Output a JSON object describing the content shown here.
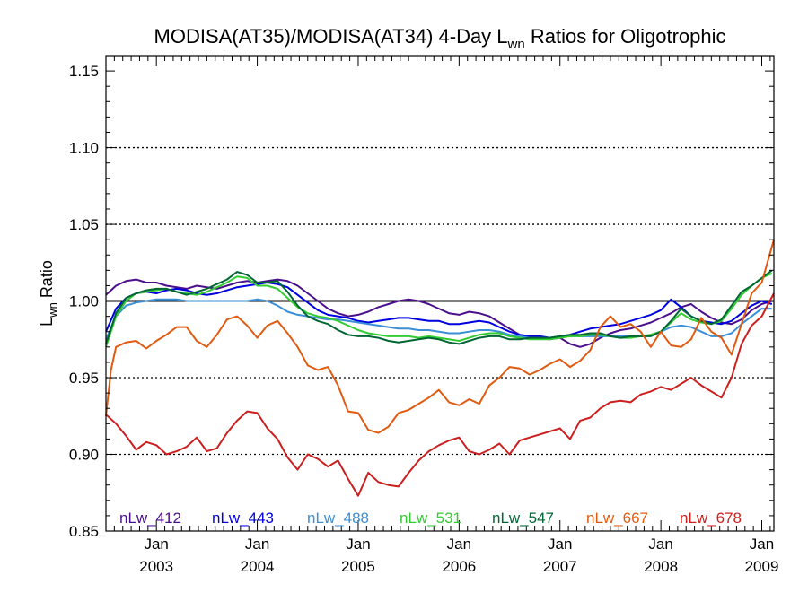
{
  "chart_data": {
    "type": "line",
    "title_main": "MODISA(AT35)/MODISA(AT34) 4-Day L",
    "title_sub": "wn",
    "title_rest": " Ratios for Oligotrophic",
    "ylabel_main": "L",
    "ylabel_sub": "wn",
    "ylabel_rest": " Ratio",
    "ylim": [
      0.85,
      1.16
    ],
    "xlim": [
      2002.5,
      2009.12
    ],
    "yticks": [
      {
        "value": 0.85,
        "label": "0.85"
      },
      {
        "value": 0.9,
        "label": "0.90"
      },
      {
        "value": 0.95,
        "label": "0.95"
      },
      {
        "value": 1.0,
        "label": "1.00"
      },
      {
        "value": 1.05,
        "label": "1.05"
      },
      {
        "value": 1.1,
        "label": "1.10"
      },
      {
        "value": 1.15,
        "label": "1.15"
      }
    ],
    "xticks": [
      {
        "value": 2003,
        "month": "Jan",
        "year": "2003"
      },
      {
        "value": 2004,
        "month": "Jan",
        "year": "2004"
      },
      {
        "value": 2005,
        "month": "Jan",
        "year": "2005"
      },
      {
        "value": 2006,
        "month": "Jan",
        "year": "2006"
      },
      {
        "value": 2007,
        "month": "Jan",
        "year": "2007"
      },
      {
        "value": 2008,
        "month": "Jan",
        "year": "2008"
      },
      {
        "value": 2009,
        "month": "Jan",
        "year": "2009"
      }
    ],
    "reference_line": 1.0,
    "dotted_gridlines": [
      0.9,
      0.95,
      1.05,
      1.1
    ],
    "series": [
      {
        "name": "nLw_412",
        "color": "#4b0f8c",
        "x": [
          2002.5,
          2002.6,
          2002.7,
          2002.8,
          2002.9,
          2003.0,
          2003.1,
          2003.2,
          2003.3,
          2003.4,
          2003.5,
          2003.6,
          2003.7,
          2003.8,
          2003.9,
          2004.0,
          2004.1,
          2004.2,
          2004.3,
          2004.4,
          2004.5,
          2004.6,
          2004.7,
          2004.8,
          2004.9,
          2005.0,
          2005.1,
          2005.2,
          2005.3,
          2005.4,
          2005.5,
          2005.6,
          2005.7,
          2005.8,
          2005.9,
          2006.0,
          2006.1,
          2006.2,
          2006.3,
          2006.4,
          2006.5,
          2006.6,
          2006.7,
          2006.8,
          2006.9,
          2007.0,
          2007.1,
          2007.2,
          2007.3,
          2007.4,
          2007.5,
          2007.6,
          2007.7,
          2007.8,
          2007.9,
          2008.0,
          2008.1,
          2008.2,
          2008.3,
          2008.4,
          2008.5,
          2008.6,
          2008.7,
          2008.8,
          2008.9,
          2009.0,
          2009.1
        ],
        "values": [
          1.004,
          1.01,
          1.013,
          1.014,
          1.012,
          1.012,
          1.01,
          1.009,
          1.008,
          1.01,
          1.009,
          1.008,
          1.01,
          1.012,
          1.013,
          1.012,
          1.013,
          1.014,
          1.013,
          1.01,
          1.005,
          1.0,
          0.995,
          0.992,
          0.99,
          0.991,
          0.993,
          0.996,
          0.998,
          1.0,
          1.001,
          1.0,
          0.998,
          0.995,
          0.992,
          0.991,
          0.993,
          0.992,
          0.99,
          0.986,
          0.982,
          0.978,
          0.977,
          0.976,
          0.975,
          0.976,
          0.972,
          0.97,
          0.972,
          0.976,
          0.979,
          0.981,
          0.982,
          0.984,
          0.986,
          0.989,
          0.992,
          0.996,
          0.998,
          0.993,
          0.989,
          0.986,
          0.985,
          0.988,
          0.994,
          0.998,
          1.0
        ]
      },
      {
        "name": "nLw_443",
        "color": "#0000e0",
        "x": [
          2002.5,
          2002.6,
          2002.7,
          2002.8,
          2002.9,
          2003.0,
          2003.1,
          2003.2,
          2003.3,
          2003.4,
          2003.5,
          2003.6,
          2003.7,
          2003.8,
          2003.9,
          2004.0,
          2004.1,
          2004.2,
          2004.3,
          2004.4,
          2004.5,
          2004.6,
          2004.7,
          2004.8,
          2004.9,
          2005.0,
          2005.1,
          2005.2,
          2005.3,
          2005.4,
          2005.5,
          2005.6,
          2005.7,
          2005.8,
          2005.9,
          2006.0,
          2006.1,
          2006.2,
          2006.3,
          2006.4,
          2006.5,
          2006.6,
          2006.7,
          2006.8,
          2006.9,
          2007.0,
          2007.1,
          2007.2,
          2007.3,
          2007.4,
          2007.5,
          2007.6,
          2007.7,
          2007.8,
          2007.9,
          2008.0,
          2008.1,
          2008.2,
          2008.3,
          2008.4,
          2008.5,
          2008.6,
          2008.7,
          2008.8,
          2008.9,
          2009.0,
          2009.1
        ],
        "values": [
          0.98,
          0.995,
          1.002,
          1.005,
          1.006,
          1.005,
          1.007,
          1.008,
          1.007,
          1.005,
          1.004,
          1.005,
          1.007,
          1.009,
          1.01,
          1.011,
          1.012,
          1.011,
          1.009,
          1.004,
          0.999,
          0.994,
          0.991,
          0.99,
          0.989,
          0.987,
          0.986,
          0.987,
          0.988,
          0.989,
          0.989,
          0.988,
          0.987,
          0.987,
          0.985,
          0.985,
          0.986,
          0.987,
          0.986,
          0.983,
          0.98,
          0.978,
          0.977,
          0.977,
          0.976,
          0.977,
          0.978,
          0.98,
          0.982,
          0.983,
          0.984,
          0.985,
          0.987,
          0.989,
          0.991,
          0.994,
          1.001,
          0.996,
          0.99,
          0.987,
          0.986,
          0.985,
          0.987,
          0.992,
          0.997,
          1.0,
          0.998
        ]
      },
      {
        "name": "nLw_488",
        "color": "#3a8fd6",
        "x": [
          2002.5,
          2002.6,
          2002.7,
          2002.8,
          2002.9,
          2003.0,
          2003.1,
          2003.2,
          2003.3,
          2003.4,
          2003.5,
          2003.6,
          2003.7,
          2003.8,
          2003.9,
          2004.0,
          2004.1,
          2004.2,
          2004.3,
          2004.4,
          2004.5,
          2004.6,
          2004.7,
          2004.8,
          2004.9,
          2005.0,
          2005.1,
          2005.2,
          2005.3,
          2005.4,
          2005.5,
          2005.6,
          2005.7,
          2005.8,
          2005.9,
          2006.0,
          2006.1,
          2006.2,
          2006.3,
          2006.4,
          2006.5,
          2006.6,
          2006.7,
          2006.8,
          2006.9,
          2007.0,
          2007.1,
          2007.2,
          2007.3,
          2007.4,
          2007.5,
          2007.6,
          2007.7,
          2007.8,
          2007.9,
          2008.0,
          2008.1,
          2008.2,
          2008.3,
          2008.4,
          2008.5,
          2008.6,
          2008.7,
          2008.8,
          2008.9,
          2009.0,
          2009.1
        ],
        "values": [
          0.975,
          0.99,
          0.997,
          0.999,
          1.0,
          1.001,
          1.001,
          1.001,
          1.0,
          1.0,
          1.0,
          1.0,
          1.0,
          1.0,
          1.0,
          1.001,
          1.0,
          0.997,
          0.993,
          0.991,
          0.99,
          0.989,
          0.988,
          0.988,
          0.987,
          0.986,
          0.985,
          0.984,
          0.983,
          0.982,
          0.982,
          0.981,
          0.981,
          0.98,
          0.979,
          0.979,
          0.98,
          0.981,
          0.981,
          0.98,
          0.978,
          0.977,
          0.976,
          0.976,
          0.976,
          0.977,
          0.977,
          0.977,
          0.977,
          0.977,
          0.977,
          0.977,
          0.977,
          0.977,
          0.978,
          0.98,
          0.983,
          0.984,
          0.983,
          0.98,
          0.977,
          0.977,
          0.979,
          0.985,
          0.99,
          0.995,
          0.995
        ]
      },
      {
        "name": "nLw_531",
        "color": "#33cc33",
        "x": [
          2002.5,
          2002.6,
          2002.7,
          2002.8,
          2002.9,
          2003.0,
          2003.1,
          2003.2,
          2003.3,
          2003.4,
          2003.5,
          2003.6,
          2003.7,
          2003.8,
          2003.9,
          2004.0,
          2004.1,
          2004.2,
          2004.3,
          2004.4,
          2004.5,
          2004.6,
          2004.7,
          2004.8,
          2004.9,
          2005.0,
          2005.1,
          2005.2,
          2005.3,
          2005.4,
          2005.5,
          2005.6,
          2005.7,
          2005.8,
          2005.9,
          2006.0,
          2006.1,
          2006.2,
          2006.3,
          2006.4,
          2006.5,
          2006.6,
          2006.7,
          2006.8,
          2006.9,
          2007.0,
          2007.1,
          2007.2,
          2007.3,
          2007.4,
          2007.5,
          2007.6,
          2007.7,
          2007.8,
          2007.9,
          2008.0,
          2008.1,
          2008.2,
          2008.3,
          2008.4,
          2008.5,
          2008.6,
          2008.7,
          2008.8,
          2008.9,
          2009.0,
          2009.1
        ],
        "values": [
          0.97,
          0.99,
          1.0,
          1.005,
          1.006,
          1.007,
          1.008,
          1.006,
          1.005,
          1.004,
          1.006,
          1.009,
          1.012,
          1.016,
          1.015,
          1.01,
          1.01,
          1.008,
          1.002,
          0.996,
          0.992,
          0.99,
          0.989,
          0.987,
          0.984,
          0.981,
          0.979,
          0.978,
          0.977,
          0.977,
          0.977,
          0.976,
          0.977,
          0.976,
          0.975,
          0.974,
          0.976,
          0.978,
          0.979,
          0.979,
          0.977,
          0.976,
          0.975,
          0.975,
          0.975,
          0.976,
          0.977,
          0.977,
          0.978,
          0.978,
          0.977,
          0.976,
          0.976,
          0.977,
          0.978,
          0.98,
          0.986,
          0.992,
          0.988,
          0.986,
          0.985,
          0.987,
          0.995,
          1.004,
          1.01,
          1.015,
          1.018
        ]
      },
      {
        "name": "nLw_547",
        "color": "#006633",
        "x": [
          2002.5,
          2002.6,
          2002.7,
          2002.8,
          2002.9,
          2003.0,
          2003.1,
          2003.2,
          2003.3,
          2003.4,
          2003.5,
          2003.6,
          2003.7,
          2003.8,
          2003.9,
          2004.0,
          2004.1,
          2004.2,
          2004.3,
          2004.4,
          2004.5,
          2004.6,
          2004.7,
          2004.8,
          2004.9,
          2005.0,
          2005.1,
          2005.2,
          2005.3,
          2005.4,
          2005.5,
          2005.6,
          2005.7,
          2005.8,
          2005.9,
          2006.0,
          2006.1,
          2006.2,
          2006.3,
          2006.4,
          2006.5,
          2006.6,
          2006.7,
          2006.8,
          2006.9,
          2007.0,
          2007.1,
          2007.2,
          2007.3,
          2007.4,
          2007.5,
          2007.6,
          2007.7,
          2007.8,
          2007.9,
          2008.0,
          2008.1,
          2008.2,
          2008.3,
          2008.4,
          2008.5,
          2008.6,
          2008.7,
          2008.8,
          2008.9,
          2009.0,
          2009.1
        ],
        "values": [
          0.972,
          0.992,
          1.002,
          1.005,
          1.007,
          1.008,
          1.008,
          1.006,
          1.004,
          1.006,
          1.008,
          1.011,
          1.014,
          1.019,
          1.017,
          1.012,
          1.012,
          1.013,
          1.006,
          0.997,
          0.99,
          0.987,
          0.985,
          0.981,
          0.978,
          0.977,
          0.977,
          0.976,
          0.974,
          0.973,
          0.974,
          0.975,
          0.976,
          0.975,
          0.973,
          0.972,
          0.974,
          0.976,
          0.977,
          0.977,
          0.975,
          0.975,
          0.976,
          0.976,
          0.976,
          0.977,
          0.978,
          0.978,
          0.979,
          0.979,
          0.977,
          0.976,
          0.977,
          0.977,
          0.977,
          0.98,
          0.987,
          0.995,
          0.99,
          0.987,
          0.985,
          0.988,
          0.997,
          1.006,
          1.01,
          1.015,
          1.02
        ]
      },
      {
        "name": "nLw_667",
        "color": "#e05a10",
        "x": [
          2002.5,
          2002.55,
          2002.6,
          2002.7,
          2002.8,
          2002.9,
          2003.0,
          2003.1,
          2003.2,
          2003.3,
          2003.4,
          2003.5,
          2003.6,
          2003.7,
          2003.8,
          2003.9,
          2004.0,
          2004.1,
          2004.2,
          2004.3,
          2004.4,
          2004.5,
          2004.6,
          2004.7,
          2004.8,
          2004.9,
          2005.0,
          2005.1,
          2005.2,
          2005.3,
          2005.4,
          2005.5,
          2005.6,
          2005.7,
          2005.8,
          2005.9,
          2006.0,
          2006.1,
          2006.2,
          2006.3,
          2006.4,
          2006.5,
          2006.6,
          2006.7,
          2006.8,
          2006.9,
          2007.0,
          2007.1,
          2007.2,
          2007.3,
          2007.4,
          2007.5,
          2007.6,
          2007.7,
          2007.8,
          2007.9,
          2008.0,
          2008.1,
          2008.2,
          2008.3,
          2008.4,
          2008.5,
          2008.6,
          2008.7,
          2008.8,
          2008.9,
          2009.0,
          2009.12
        ],
        "values": [
          0.925,
          0.955,
          0.97,
          0.973,
          0.974,
          0.969,
          0.974,
          0.978,
          0.983,
          0.983,
          0.974,
          0.97,
          0.978,
          0.988,
          0.99,
          0.984,
          0.976,
          0.984,
          0.987,
          0.979,
          0.97,
          0.958,
          0.955,
          0.957,
          0.945,
          0.928,
          0.927,
          0.916,
          0.914,
          0.918,
          0.927,
          0.929,
          0.933,
          0.937,
          0.942,
          0.934,
          0.932,
          0.936,
          0.933,
          0.945,
          0.95,
          0.957,
          0.956,
          0.952,
          0.955,
          0.959,
          0.962,
          0.957,
          0.961,
          0.968,
          0.983,
          0.99,
          0.983,
          0.985,
          0.98,
          0.97,
          0.98,
          0.971,
          0.97,
          0.975,
          0.989,
          0.98,
          0.976,
          0.965,
          0.985,
          1.005,
          1.012,
          1.04
        ]
      },
      {
        "name": "nLw_678",
        "color": "#cc1f1f",
        "x": [
          2002.5,
          2002.6,
          2002.7,
          2002.8,
          2002.9,
          2003.0,
          2003.1,
          2003.2,
          2003.3,
          2003.4,
          2003.5,
          2003.6,
          2003.7,
          2003.8,
          2003.9,
          2004.0,
          2004.1,
          2004.2,
          2004.3,
          2004.4,
          2004.5,
          2004.6,
          2004.7,
          2004.8,
          2004.9,
          2005.0,
          2005.1,
          2005.2,
          2005.3,
          2005.4,
          2005.5,
          2005.6,
          2005.7,
          2005.8,
          2005.9,
          2006.0,
          2006.1,
          2006.2,
          2006.3,
          2006.4,
          2006.5,
          2006.6,
          2006.7,
          2006.8,
          2006.9,
          2007.0,
          2007.1,
          2007.2,
          2007.3,
          2007.4,
          2007.5,
          2007.6,
          2007.7,
          2007.8,
          2007.9,
          2008.0,
          2008.1,
          2008.2,
          2008.3,
          2008.4,
          2008.5,
          2008.6,
          2008.7,
          2008.8,
          2008.9,
          2009.0,
          2009.12
        ],
        "values": [
          0.926,
          0.92,
          0.912,
          0.903,
          0.908,
          0.906,
          0.9,
          0.902,
          0.905,
          0.911,
          0.902,
          0.904,
          0.914,
          0.922,
          0.928,
          0.927,
          0.917,
          0.91,
          0.898,
          0.89,
          0.9,
          0.897,
          0.892,
          0.896,
          0.884,
          0.873,
          0.888,
          0.882,
          0.88,
          0.879,
          0.888,
          0.896,
          0.902,
          0.906,
          0.909,
          0.911,
          0.902,
          0.9,
          0.903,
          0.907,
          0.9,
          0.909,
          0.911,
          0.913,
          0.915,
          0.917,
          0.91,
          0.922,
          0.924,
          0.93,
          0.934,
          0.935,
          0.934,
          0.939,
          0.941,
          0.944,
          0.942,
          0.946,
          0.95,
          0.945,
          0.941,
          0.937,
          0.95,
          0.972,
          0.984,
          0.99,
          1.005
        ]
      }
    ]
  }
}
